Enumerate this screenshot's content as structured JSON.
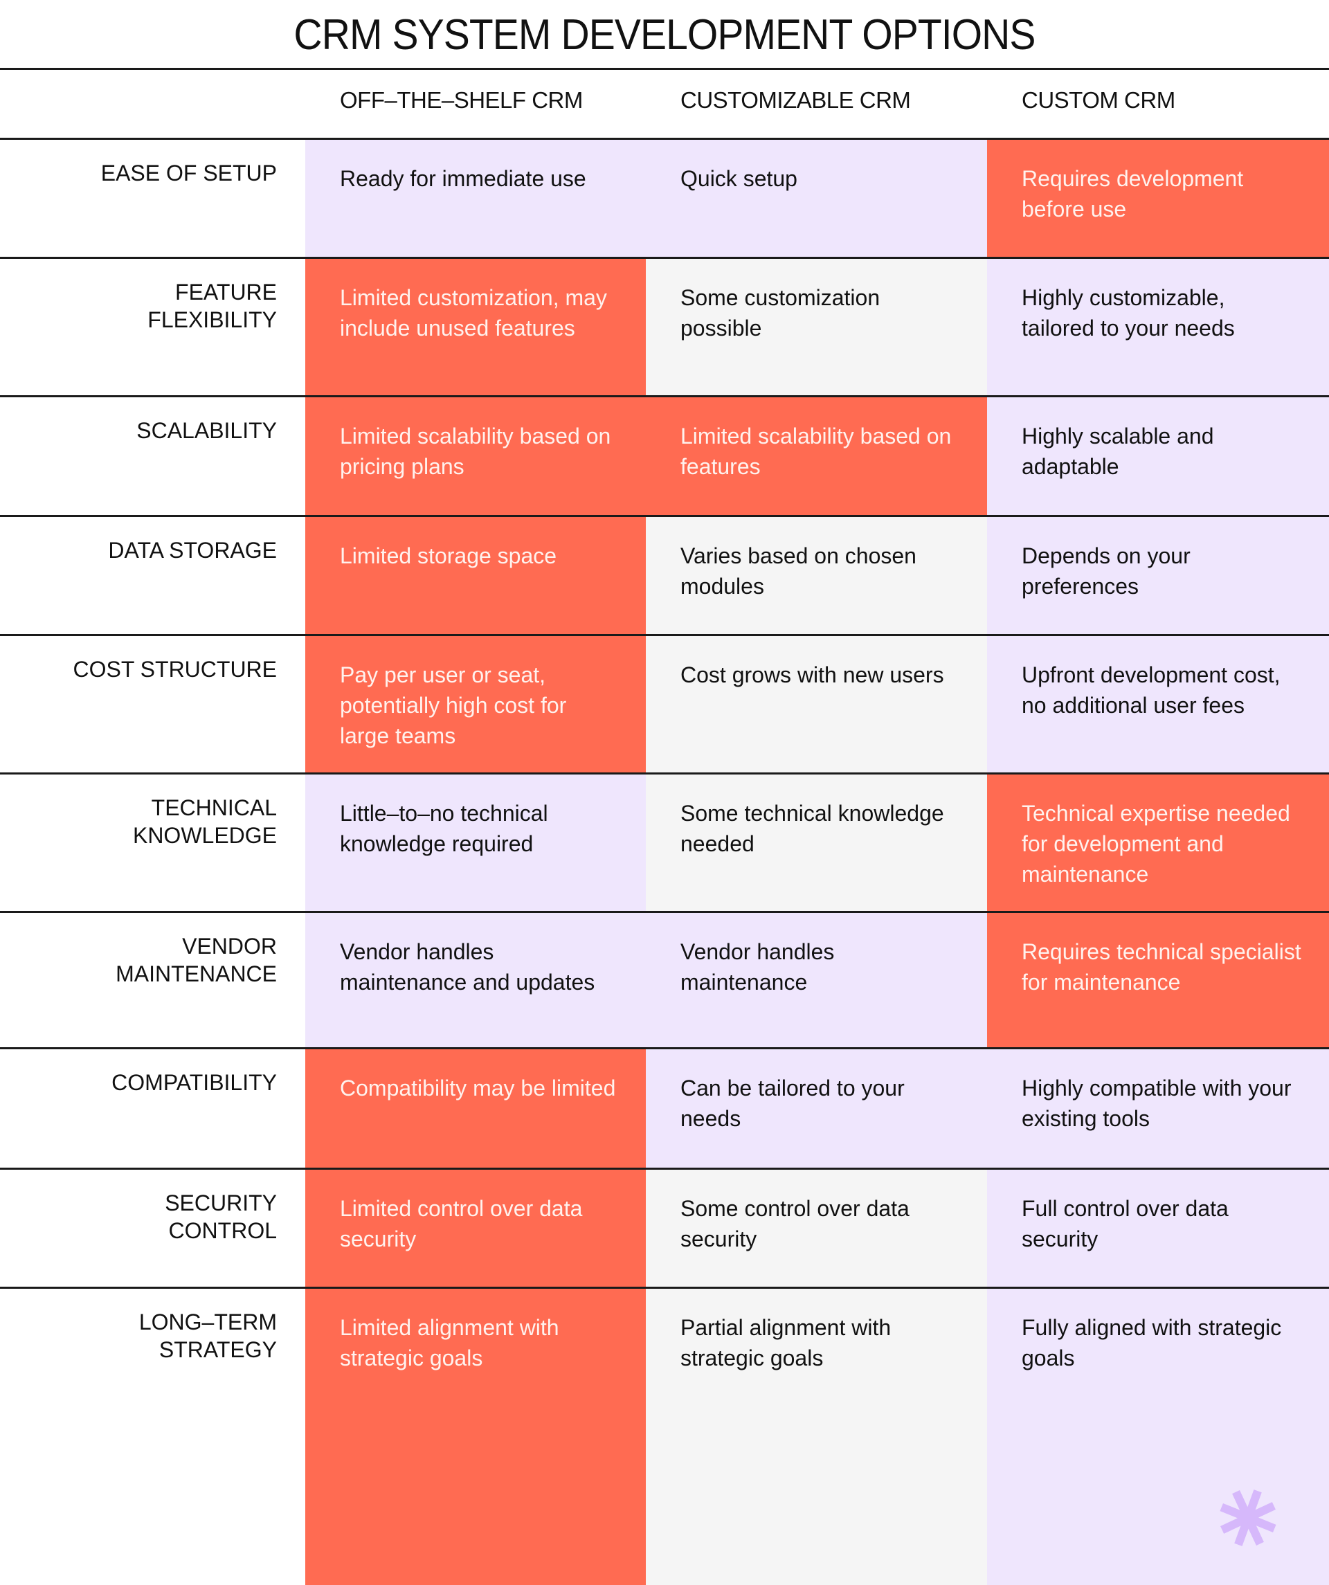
{
  "title": "CRM SYSTEM DEVELOPMENT OPTIONS",
  "columns": [
    "OFF–THE–SHELF CRM",
    "CUSTOMIZABLE CRM",
    "CUSTOM CRM"
  ],
  "colors": {
    "lavender": "#efe6fd",
    "coral": "#ff6b52",
    "gray": "#f5f5f5",
    "asterisk": "#d6b8fb"
  },
  "rows": [
    {
      "label": "EASE OF SETUP",
      "cells": [
        "Ready for immediate use",
        "Quick setup",
        "Requires development before use"
      ],
      "shades": [
        "L",
        "L",
        "R"
      ]
    },
    {
      "label": "FEATURE FLEXIBILITY",
      "cells": [
        "Limited customization, may include unused features",
        "Some customization possible",
        "Highly customizable, tailored to your needs"
      ],
      "shades": [
        "R",
        "G",
        "L"
      ]
    },
    {
      "label": "SCALABILITY",
      "cells": [
        "Limited scalability based on pricing plans",
        "Limited scalability based on features",
        "Highly scalable and adaptable"
      ],
      "shades": [
        "R",
        "R",
        "L"
      ]
    },
    {
      "label": "DATA STORAGE",
      "cells": [
        "Limited storage space",
        "Varies based on chosen modules",
        "Depends on your preferences"
      ],
      "shades": [
        "R",
        "G",
        "L"
      ]
    },
    {
      "label": "COST STRUCTURE",
      "cells": [
        "Pay per user or seat, potentially high cost for large teams",
        "Cost grows with new users",
        "Upfront development cost, no additional user fees"
      ],
      "shades": [
        "R",
        "G",
        "L"
      ]
    },
    {
      "label": "TECHNICAL KNOWLEDGE",
      "cells": [
        "Little–to–no technical knowledge required",
        "Some technical knowledge needed",
        "Technical expertise needed for development and maintenance"
      ],
      "shades": [
        "L",
        "G",
        "R"
      ]
    },
    {
      "label": "VENDOR MAINTENANCE",
      "cells": [
        "Vendor handles maintenance and updates",
        "Vendor handles maintenance",
        "Requires technical specialist for maintenance"
      ],
      "shades": [
        "L",
        "L",
        "R"
      ]
    },
    {
      "label": "COMPATIBILITY",
      "cells": [
        "Compatibility may be limited",
        "Can be tailored to your needs",
        "Highly compatible with your existing tools"
      ],
      "shades": [
        "R",
        "L",
        "L"
      ]
    },
    {
      "label": "SECURITY CONTROL",
      "cells": [
        "Limited control over data security",
        "Some control over data security",
        "Full control over data security"
      ],
      "shades": [
        "R",
        "G",
        "L"
      ]
    },
    {
      "label": "LONG–TERM STRATEGY",
      "cells": [
        "Limited alignment with strategic goals",
        "Partial alignment with strategic goals",
        "Fully aligned with strategic goals"
      ],
      "shades": [
        "R",
        "G",
        "L"
      ]
    }
  ],
  "decoration": {
    "icon": "asterisk-icon"
  }
}
